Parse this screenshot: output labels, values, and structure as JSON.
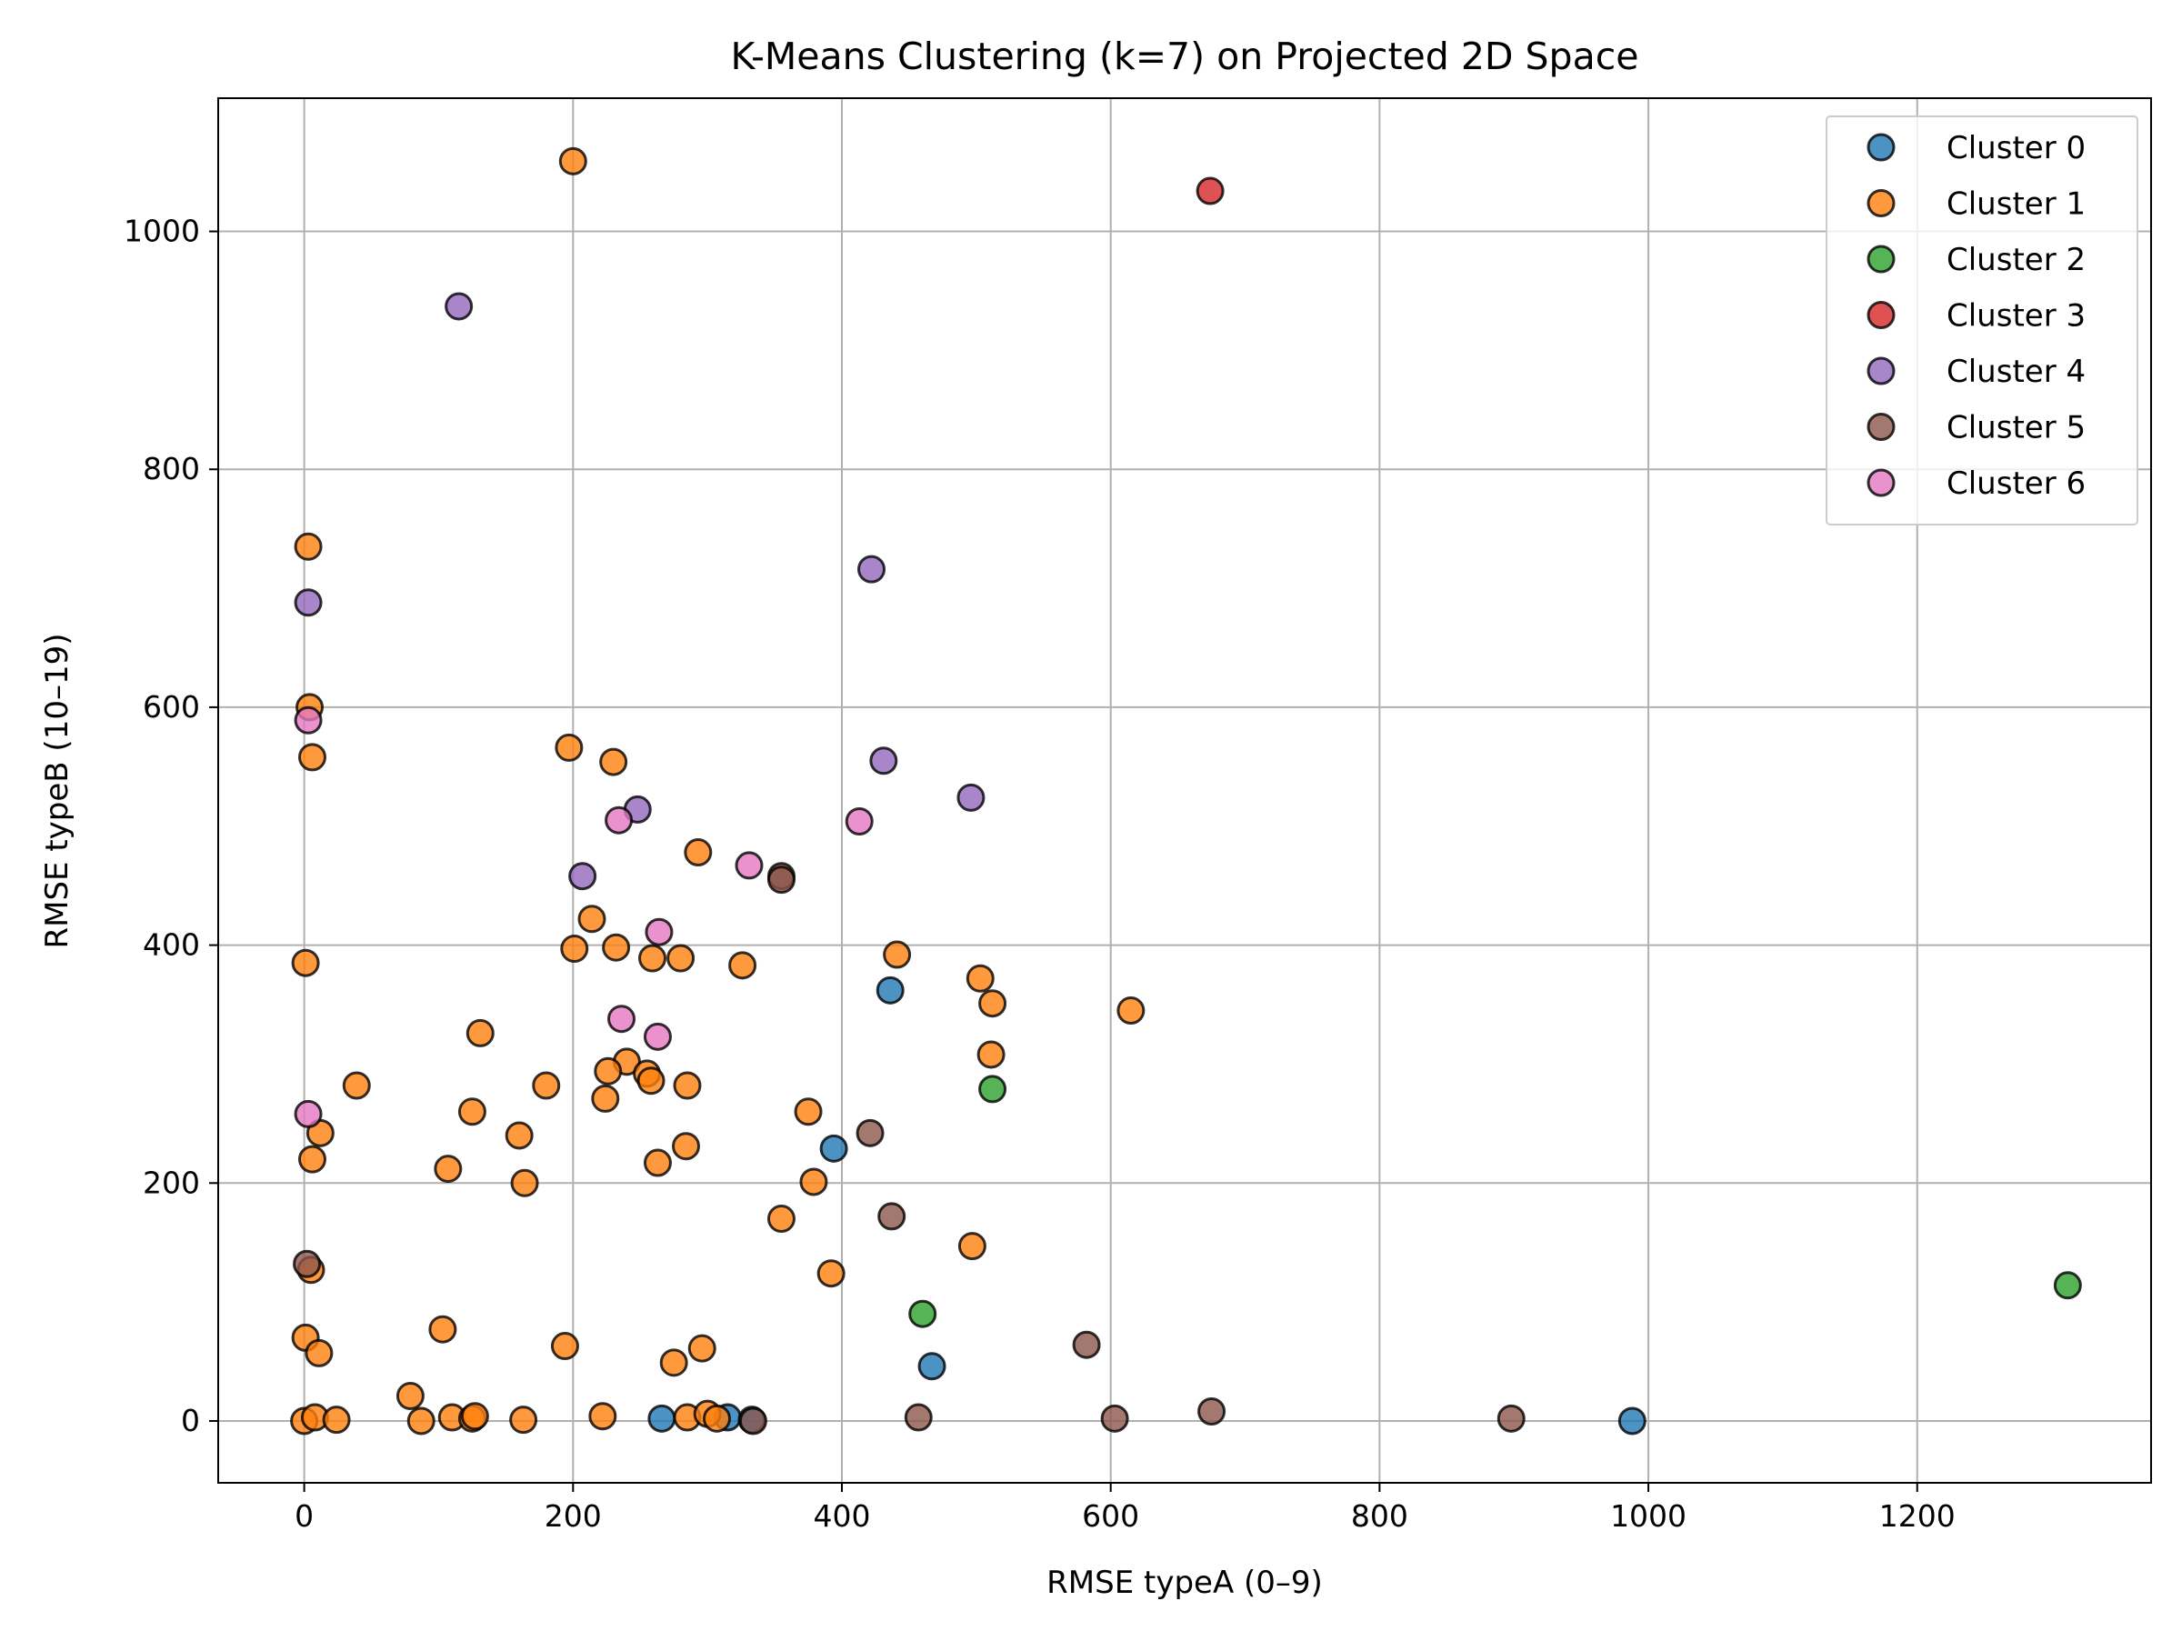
{
  "chart_data": {
    "type": "scatter",
    "title": "K-Means Clustering (k=7) on Projected 2D Space",
    "xlabel": "RMSE typeA (0–9)",
    "ylabel": "RMSE typeB (10–19)",
    "xlim": [
      -64,
      1374
    ],
    "ylim": [
      -52,
      1112
    ],
    "xticks": [
      0,
      200,
      400,
      600,
      800,
      1000,
      1200
    ],
    "yticks": [
      0,
      200,
      400,
      600,
      800,
      1000
    ],
    "grid": true,
    "legend_position": "top-right",
    "series": [
      {
        "name": "Cluster 0",
        "color": "#1f77b4",
        "points": [
          [
            394,
            229
          ],
          [
            436,
            362
          ],
          [
            467,
            46
          ],
          [
            988,
            0
          ],
          [
            266,
            2
          ],
          [
            315,
            3
          ],
          [
            333,
            1
          ]
        ]
      },
      {
        "name": "Cluster 1",
        "color": "#ff7f0e",
        "points": [
          [
            200,
            1059
          ],
          [
            3,
            735
          ],
          [
            4,
            600
          ],
          [
            6,
            558
          ],
          [
            1,
            385
          ],
          [
            197,
            566
          ],
          [
            230,
            554
          ],
          [
            293,
            478
          ],
          [
            214,
            422
          ],
          [
            201,
            397
          ],
          [
            232,
            398
          ],
          [
            259,
            389
          ],
          [
            280,
            389
          ],
          [
            326,
            383
          ],
          [
            441,
            392
          ],
          [
            503,
            372
          ],
          [
            512,
            351
          ],
          [
            615,
            345
          ],
          [
            511,
            308
          ],
          [
            131,
            326
          ],
          [
            240,
            302
          ],
          [
            226,
            294
          ],
          [
            255,
            292
          ],
          [
            258,
            286
          ],
          [
            285,
            282
          ],
          [
            180,
            282
          ],
          [
            39,
            282
          ],
          [
            125,
            260
          ],
          [
            375,
            260
          ],
          [
            12,
            242
          ],
          [
            160,
            240
          ],
          [
            224,
            271
          ],
          [
            6,
            220
          ],
          [
            107,
            212
          ],
          [
            263,
            217
          ],
          [
            284,
            231
          ],
          [
            164,
            200
          ],
          [
            379,
            201
          ],
          [
            355,
            170
          ],
          [
            497,
            147
          ],
          [
            392,
            124
          ],
          [
            5,
            127
          ],
          [
            1,
            70
          ],
          [
            11,
            57
          ],
          [
            103,
            77
          ],
          [
            194,
            63
          ],
          [
            296,
            61
          ],
          [
            275,
            49
          ],
          [
            79,
            21
          ],
          [
            87,
            0
          ],
          [
            110,
            3
          ],
          [
            125,
            2
          ],
          [
            127,
            4
          ],
          [
            163,
            1
          ],
          [
            222,
            4
          ],
          [
            285,
            3
          ],
          [
            300,
            6
          ],
          [
            307,
            2
          ],
          [
            0,
            0
          ],
          [
            8,
            3
          ],
          [
            24,
            1
          ]
        ]
      },
      {
        "name": "Cluster 2",
        "color": "#2ca02c",
        "points": [
          [
            512,
            279
          ],
          [
            460,
            90
          ],
          [
            1312,
            114
          ]
        ]
      },
      {
        "name": "Cluster 3",
        "color": "#d62728",
        "points": [
          [
            674,
            1034
          ]
        ]
      },
      {
        "name": "Cluster 4",
        "color": "#9467bd",
        "points": [
          [
            115,
            937
          ],
          [
            422,
            716
          ],
          [
            3,
            688
          ],
          [
            431,
            555
          ],
          [
            496,
            524
          ],
          [
            248,
            514
          ],
          [
            207,
            458
          ]
        ]
      },
      {
        "name": "Cluster 5",
        "color": "#8c564b",
        "points": [
          [
            355,
            458
          ],
          [
            355,
            455
          ],
          [
            421,
            242
          ],
          [
            437,
            172
          ],
          [
            582,
            64
          ],
          [
            675,
            8
          ],
          [
            457,
            3
          ],
          [
            603,
            2
          ],
          [
            898,
            2
          ],
          [
            334,
            0
          ],
          [
            2,
            132
          ]
        ]
      },
      {
        "name": "Cluster 6",
        "color": "#e377c2",
        "points": [
          [
            3,
            589
          ],
          [
            234,
            505
          ],
          [
            413,
            504
          ],
          [
            331,
            467
          ],
          [
            264,
            411
          ],
          [
            236,
            338
          ],
          [
            263,
            323
          ],
          [
            3,
            258
          ]
        ]
      }
    ]
  }
}
